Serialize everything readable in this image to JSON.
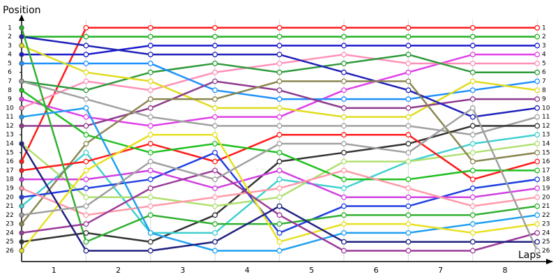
{
  "chart_data": {
    "type": "line",
    "ylabel": "Position",
    "xlabel": "Laps",
    "x": [
      0,
      1,
      2,
      3,
      4,
      5,
      6,
      7,
      8
    ],
    "xlim": [
      0,
      8.2
    ],
    "xticks": [
      {
        "value": 0.5,
        "label": "1"
      },
      {
        "value": 1.5,
        "label": "2"
      },
      {
        "value": 2.5,
        "label": "3"
      },
      {
        "value": 3.5,
        "label": "4"
      },
      {
        "value": 4.5,
        "label": "5"
      },
      {
        "value": 5.5,
        "label": "6"
      },
      {
        "value": 6.5,
        "label": "7"
      },
      {
        "value": 7.5,
        "label": "8"
      }
    ],
    "ylim": [
      26.9,
      0
    ],
    "yticks": [
      1,
      2,
      3,
      4,
      5,
      6,
      7,
      8,
      9,
      10,
      11,
      12,
      13,
      14,
      15,
      16,
      17,
      18,
      19,
      20,
      21,
      22,
      23,
      24,
      25,
      26
    ],
    "vgrid": true,
    "series": [
      {
        "color": "#ff1a1a",
        "values": [
          16,
          1,
          1,
          1,
          1,
          1,
          1,
          1,
          1
        ]
      },
      {
        "color": "#22b022",
        "values": [
          2,
          2,
          2,
          2,
          2,
          2,
          2,
          2,
          2
        ]
      },
      {
        "color": "#1a1acc",
        "values": [
          4,
          4,
          3,
          3,
          3,
          3,
          3,
          3,
          3
        ]
      },
      {
        "color": "#e040e8",
        "values": [
          9,
          11,
          12,
          11,
          11,
          8,
          6,
          4,
          4
        ]
      },
      {
        "color": "#ff90b8",
        "values": [
          10,
          7,
          8,
          6,
          5,
          4,
          5,
          5,
          5
        ]
      },
      {
        "color": "#2e9a3a",
        "values": [
          7,
          8,
          6,
          5,
          6,
          5,
          4,
          6,
          6
        ]
      },
      {
        "color": "#1e90ff",
        "values": [
          5,
          5,
          5,
          8,
          9,
          9,
          9,
          8,
          7
        ]
      },
      {
        "color": "#e0dc20",
        "values": [
          3,
          6,
          7,
          10,
          10,
          11,
          11,
          7,
          8
        ]
      },
      {
        "color": "#8e3a8e",
        "values": [
          12,
          12,
          10,
          7,
          8,
          10,
          10,
          9,
          9
        ]
      },
      {
        "color": "#2020b8",
        "values": [
          2,
          3,
          4,
          4,
          4,
          6,
          8,
          11,
          10
        ]
      },
      {
        "color": "#a0a0a0",
        "values": [
          7,
          9,
          11,
          12,
          12,
          12,
          12,
          13,
          11
        ]
      },
      {
        "color": "#333333",
        "values": [
          25,
          24,
          25,
          22,
          16,
          15,
          14,
          12,
          12
        ]
      },
      {
        "color": "#40d0d0",
        "values": [
          21,
          15,
          24,
          24,
          18,
          19,
          16,
          14,
          13
        ]
      },
      {
        "color": "#b0e070",
        "values": [
          14,
          20,
          20,
          21,
          20,
          16,
          16,
          15,
          14
        ]
      },
      {
        "color": "#8a8650",
        "values": [
          23,
          14,
          9,
          9,
          7,
          7,
          7,
          16,
          15
        ]
      },
      {
        "color": "#ff1a1a",
        "values": [
          17,
          16,
          14,
          16,
          13,
          13,
          13,
          18,
          16
        ]
      },
      {
        "color": "#20c020",
        "values": [
          8,
          13,
          15,
          14,
          15,
          18,
          18,
          17,
          17
        ]
      },
      {
        "color": "#2040e0",
        "values": [
          20,
          19,
          18,
          15,
          24,
          21,
          21,
          19,
          18
        ]
      },
      {
        "color": "#d040e0",
        "values": [
          18,
          18,
          17,
          19,
          17,
          20,
          20,
          20,
          19
        ]
      },
      {
        "color": "#ff99aa",
        "values": [
          19,
          22,
          21,
          20,
          19,
          17,
          19,
          21,
          20
        ]
      },
      {
        "color": "#30b030",
        "values": [
          1,
          25,
          22,
          23,
          23,
          22,
          22,
          22,
          21
        ]
      },
      {
        "color": "#20a0f0",
        "values": [
          11,
          10,
          24,
          26,
          26,
          24,
          24,
          23,
          22
        ]
      },
      {
        "color": "#e8e020",
        "values": [
          26,
          17,
          13,
          13,
          25,
          23,
          23,
          24,
          23
        ]
      },
      {
        "color": "#9a3a9a",
        "values": [
          24,
          23,
          19,
          17,
          22,
          26,
          26,
          26,
          24
        ]
      },
      {
        "color": "#202080",
        "values": [
          14,
          26,
          26,
          25,
          21,
          25,
          25,
          25,
          25
        ]
      },
      {
        "color": "#a0a0a0",
        "values": [
          22,
          21,
          16,
          18,
          14,
          14,
          15,
          10,
          26
        ]
      }
    ]
  }
}
